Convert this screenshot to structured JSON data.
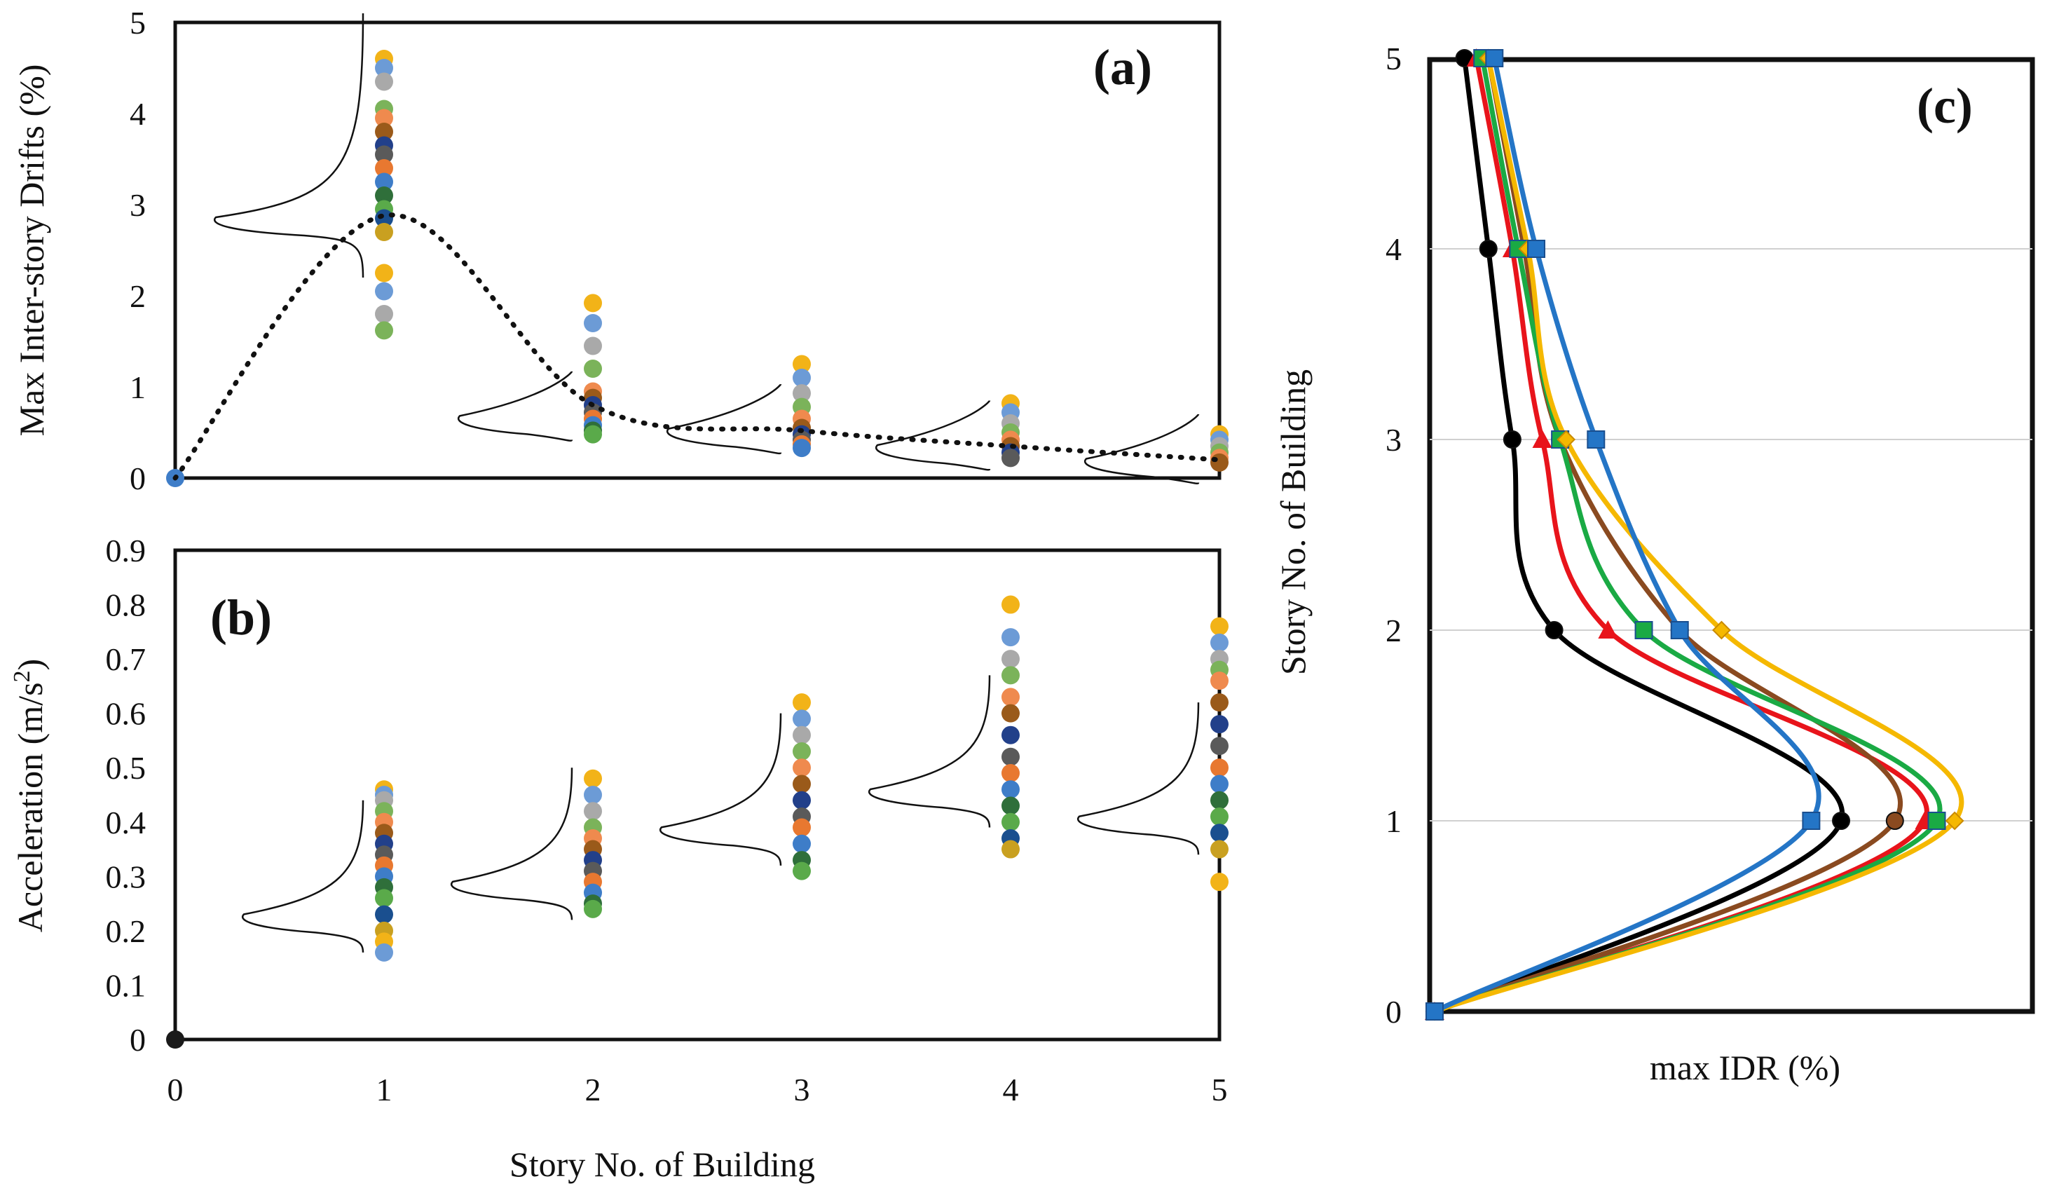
{
  "figure": {
    "shared_xlabel": "Story No. of Building"
  },
  "chart_data": [
    {
      "id": "a",
      "type": "scatter",
      "panel_label": "(a)",
      "title": "",
      "xlabel": "Story No. of Building",
      "ylabel": "Max Inter-story Drifts (%)",
      "xlim": [
        0,
        5
      ],
      "ylim": [
        0,
        5
      ],
      "xticks": [
        0,
        1,
        2,
        3,
        4,
        5
      ],
      "yticks": [
        0,
        1,
        2,
        3,
        4,
        5
      ],
      "grid": false,
      "point_colors": [
        "#f2b318",
        "#6c9bd6",
        "#a9a9a9",
        "#7bb35a",
        "#ef8a4e",
        "#9a5a1a",
        "#22408a",
        "#5a5a5a",
        "#e87830",
        "#3e7dc8",
        "#2f6f3a",
        "#5aaa4a",
        "#1a4f8f",
        "#c9a020"
      ],
      "points": [
        {
          "x": 0,
          "y": [
            0.0
          ]
        },
        {
          "x": 1,
          "y": [
            4.6,
            4.5,
            4.35,
            4.05,
            3.95,
            3.8,
            3.65,
            3.55,
            3.4,
            3.25,
            3.1,
            2.95,
            2.85,
            2.7,
            2.25,
            2.05,
            1.8,
            1.62
          ]
        },
        {
          "x": 2,
          "y": [
            1.92,
            1.7,
            1.45,
            1.2,
            0.95,
            0.88,
            0.8,
            0.72,
            0.65,
            0.58,
            0.52,
            0.48
          ]
        },
        {
          "x": 3,
          "y": [
            1.25,
            1.1,
            0.93,
            0.78,
            0.65,
            0.55,
            0.48,
            0.42,
            0.37,
            0.33
          ]
        },
        {
          "x": 4,
          "y": [
            0.82,
            0.72,
            0.6,
            0.5,
            0.42,
            0.35,
            0.28,
            0.22
          ]
        },
        {
          "x": 5,
          "y": [
            0.48,
            0.42,
            0.35,
            0.28,
            0.22,
            0.17
          ]
        }
      ],
      "mean_curve": {
        "style": "dotted",
        "x": [
          0,
          1,
          2,
          3,
          4,
          5
        ],
        "y": [
          0.0,
          2.88,
          0.8,
          0.52,
          0.35,
          0.2
        ]
      },
      "distributions": [
        {
          "x": 1,
          "mode": 2.8
        },
        {
          "x": 2,
          "mode": 0.62
        },
        {
          "x": 3,
          "mode": 0.48
        },
        {
          "x": 4,
          "mode": 0.3
        },
        {
          "x": 5,
          "mode": 0.15
        }
      ]
    },
    {
      "id": "b",
      "type": "scatter",
      "panel_label": "(b)",
      "title": "",
      "xlabel": "Story No. of Building",
      "ylabel": "Acceleration (m/s²)",
      "ylabel_main": "Acceleration (m/s",
      "ylabel_sup": "2",
      "ylabel_end": ")",
      "xlim": [
        0,
        5
      ],
      "ylim": [
        0,
        0.9
      ],
      "xticks": [
        0,
        1,
        2,
        3,
        4,
        5
      ],
      "yticks": [
        0,
        0.1,
        0.2,
        0.3,
        0.4,
        0.5,
        0.6,
        0.7,
        0.8,
        0.9
      ],
      "grid": false,
      "point_colors": [
        "#f2b318",
        "#6c9bd6",
        "#a9a9a9",
        "#7bb35a",
        "#ef8a4e",
        "#9a5a1a",
        "#22408a",
        "#5a5a5a",
        "#e87830",
        "#3e7dc8",
        "#2f6f3a",
        "#5aaa4a",
        "#1a4f8f",
        "#c9a020"
      ],
      "points": [
        {
          "x": 0,
          "y": [
            0.0
          ]
        },
        {
          "x": 1,
          "y": [
            0.46,
            0.45,
            0.44,
            0.42,
            0.4,
            0.38,
            0.36,
            0.34,
            0.32,
            0.3,
            0.28,
            0.26,
            0.23,
            0.2,
            0.18,
            0.16
          ]
        },
        {
          "x": 2,
          "y": [
            0.48,
            0.45,
            0.42,
            0.39,
            0.37,
            0.35,
            0.33,
            0.31,
            0.29,
            0.27,
            0.25,
            0.24
          ]
        },
        {
          "x": 3,
          "y": [
            0.62,
            0.59,
            0.56,
            0.53,
            0.5,
            0.47,
            0.44,
            0.41,
            0.39,
            0.36,
            0.33,
            0.31
          ]
        },
        {
          "x": 4,
          "y": [
            0.8,
            0.74,
            0.7,
            0.67,
            0.63,
            0.6,
            0.56,
            0.52,
            0.49,
            0.46,
            0.43,
            0.4,
            0.37,
            0.35
          ]
        },
        {
          "x": 5,
          "y": [
            0.76,
            0.73,
            0.7,
            0.68,
            0.66,
            0.62,
            0.58,
            0.54,
            0.5,
            0.47,
            0.44,
            0.41,
            0.38,
            0.35,
            0.29
          ]
        }
      ],
      "distributions": [
        {
          "x": 1,
          "mode": 0.22
        },
        {
          "x": 2,
          "mode": 0.28
        },
        {
          "x": 3,
          "mode": 0.38
        },
        {
          "x": 4,
          "mode": 0.45
        },
        {
          "x": 5,
          "mode": 0.4
        }
      ]
    },
    {
      "id": "c",
      "type": "line",
      "panel_label": "(c)",
      "title": "",
      "xlabel": "max IDR (%)",
      "ylabel": "Story No. of Building",
      "xlim": [
        0,
        5
      ],
      "ylim": [
        0,
        5
      ],
      "yticks": [
        0,
        1,
        2,
        3,
        4,
        5
      ],
      "xticks": [],
      "grid": true,
      "y": [
        0,
        1,
        2,
        3,
        4,
        5
      ],
      "series": [
        {
          "name": "black",
          "color": "#000000",
          "marker": "circle",
          "x": [
            0.0,
            3.4,
            1.0,
            0.65,
            0.45,
            0.25
          ]
        },
        {
          "name": "red",
          "color": "#e8141b",
          "marker": "triangle",
          "x": [
            0.0,
            4.1,
            1.45,
            0.9,
            0.65,
            0.35
          ]
        },
        {
          "name": "brown",
          "color": "#8a4a20",
          "marker": "circle",
          "x": [
            0.0,
            3.85,
            2.05,
            1.05,
            0.75,
            0.45
          ]
        },
        {
          "name": "green",
          "color": "#1aaa44",
          "marker": "square",
          "x": [
            0.0,
            4.2,
            1.75,
            1.05,
            0.7,
            0.4
          ]
        },
        {
          "name": "yellow",
          "color": "#f5b800",
          "marker": "diamond",
          "x": [
            0.0,
            4.35,
            2.4,
            1.1,
            0.78,
            0.45
          ]
        },
        {
          "name": "blue",
          "color": "#2475c6",
          "marker": "square",
          "x": [
            0.0,
            3.15,
            2.05,
            1.35,
            0.85,
            0.5
          ]
        }
      ]
    }
  ]
}
